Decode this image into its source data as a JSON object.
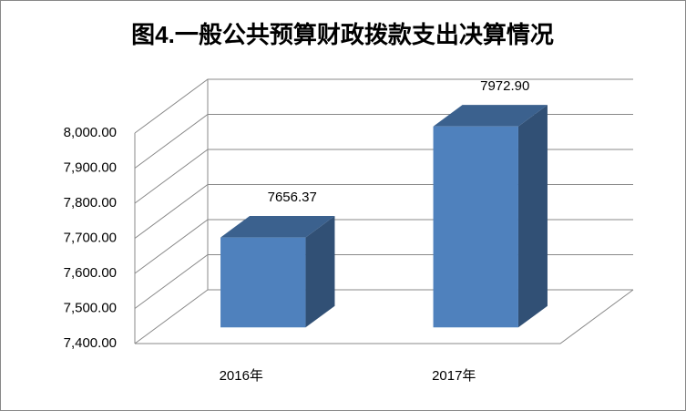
{
  "chart_data": {
    "type": "bar",
    "title": "图4.一般公共预算财政拨款支出决算情况",
    "categories": [
      "2016年",
      "2017年"
    ],
    "values": [
      7656.37,
      7972.9
    ],
    "value_labels": [
      "7656.37",
      "7972.90"
    ],
    "color": "#4f81bd",
    "ylim": [
      7400,
      8000
    ],
    "yticks": [
      {
        "value": 7400,
        "label": "7,400.00"
      },
      {
        "value": 7500,
        "label": "7,500.00"
      },
      {
        "value": 7600,
        "label": "7,600.00"
      },
      {
        "value": 7700,
        "label": "7,700.00"
      },
      {
        "value": 7800,
        "label": "7,800.00"
      },
      {
        "value": 7900,
        "label": "7,900.00"
      },
      {
        "value": 8000,
        "label": "8,000.00"
      }
    ],
    "grid": true
  }
}
